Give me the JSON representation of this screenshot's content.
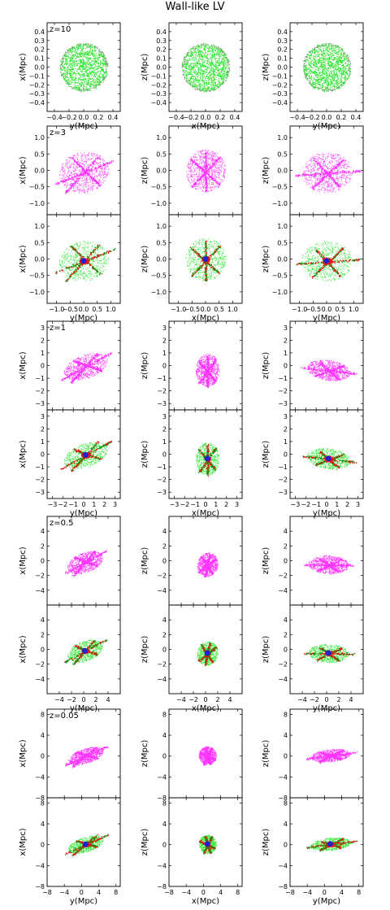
{
  "title": "Wall-like LV",
  "colors": {
    "stars_green": "#2fe82f",
    "stars_green_dark": "#0a9a0a",
    "dm_magenta": "#ff33ff",
    "gas_red": "#ee1111",
    "center_blue": "#2222cc",
    "background": "#ffffff"
  },
  "chart_data": {
    "type": "scatter",
    "grid": false,
    "legend": "none",
    "column_ylabels": [
      "x(Mpc)",
      "z(Mpc)",
      "z(Mpc)"
    ],
    "column_xlabels": [
      "y(Mpc)",
      "x(Mpc)",
      "y(Mpc)"
    ],
    "groups": [
      {
        "redshift_label": "z=10",
        "lim": [
          -0.5,
          0.5
        ],
        "xticks": [
          "−0.4",
          "−0.2",
          "0.0",
          "0.2",
          "0.4"
        ],
        "yticks": [
          "0.4",
          "0.3",
          "0.2",
          "0.1",
          "0.0",
          "−0.1",
          "−0.2",
          "−0.3",
          "−0.4"
        ],
        "rows": [
          "particles_green_sphere"
        ]
      },
      {
        "redshift_label": "z=3",
        "lim": [
          -1.35,
          1.35
        ],
        "xticks": [
          "−1.0",
          "−0.5",
          "0.0",
          "0.5",
          "1.0"
        ],
        "yticks": [
          "1.0",
          "0.5",
          "0.0",
          "−0.5",
          "−1.0"
        ],
        "rows": [
          "dark_matter",
          "stars_gas"
        ]
      },
      {
        "redshift_label": "z=1",
        "lim": [
          -3.5,
          3.5
        ],
        "xticks": [
          "−3",
          "−2",
          "−1",
          "0",
          "1",
          "2",
          "3"
        ],
        "yticks": [
          "3",
          "2",
          "1",
          "0",
          "−1",
          "−2",
          "−3"
        ],
        "rows": [
          "dark_matter",
          "stars_gas"
        ]
      },
      {
        "redshift_label": "z=0.5",
        "lim": [
          -6,
          6
        ],
        "xticks": [
          "−4",
          "−2",
          "0",
          "2",
          "4"
        ],
        "yticks": [
          "4",
          "2",
          "0",
          "−2",
          "−4"
        ],
        "rows": [
          "dark_matter",
          "stars_gas"
        ]
      },
      {
        "redshift_label": "z=0.05",
        "lim": [
          -8,
          9
        ],
        "xticks": [
          "−8",
          "−4",
          "0",
          "4",
          "8"
        ],
        "yticks": [
          "8",
          "4",
          "0",
          "−4",
          "−8"
        ],
        "rows": [
          "dark_matter",
          "stars_gas"
        ]
      }
    ]
  }
}
